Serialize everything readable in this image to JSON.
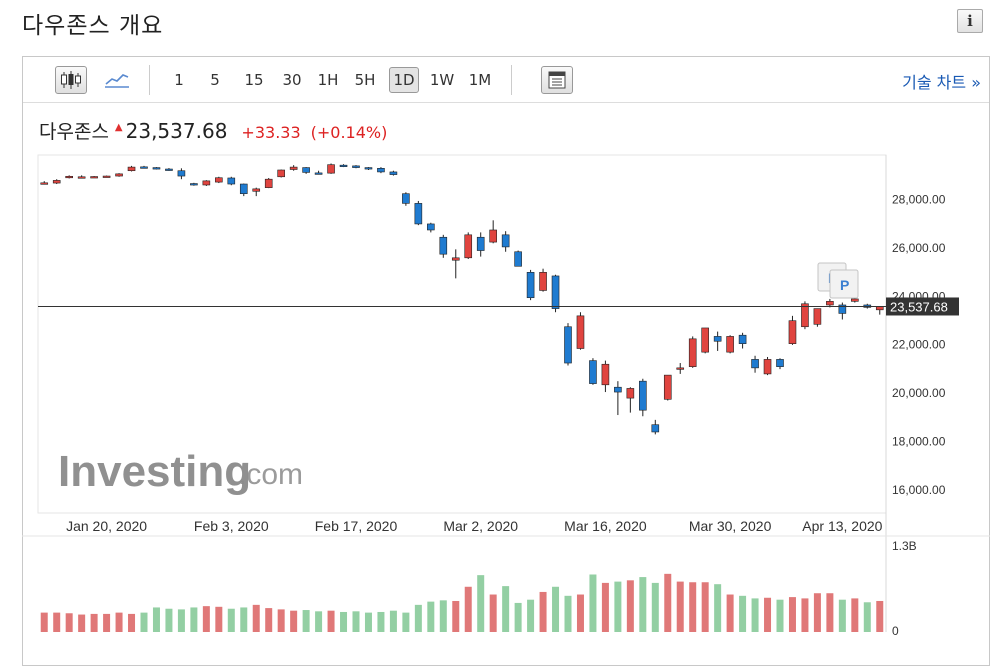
{
  "page_title": "다우존스 개요",
  "info_icon": "i",
  "toolbar": {
    "intervals": [
      "1",
      "5",
      "15",
      "30",
      "1H",
      "5H",
      "1D",
      "1W",
      "1M"
    ],
    "active_interval": "1D",
    "icons": [
      "candlestick-chart-icon",
      "line-chart-icon",
      "panel-icon"
    ],
    "tech_link": "기술 차트 »"
  },
  "quote": {
    "name": "다우존스",
    "price": "23,537.68",
    "change": "+33.33",
    "change_pct": "(+0.14%)"
  },
  "colors": {
    "up": "#e0443f",
    "down": "#1f7bd0",
    "vol_up": "#e07878",
    "vol_down": "#93cfa3"
  },
  "watermark": {
    "brand": "Investing",
    "suffix": ".com"
  },
  "markers": [
    "P",
    "P"
  ],
  "chart_data": {
    "type": "candlestick",
    "title": "",
    "y_ticks": [
      "28,000.00",
      "26,000.00",
      "24,000.00",
      "22,000.00",
      "20,000.00",
      "18,000.00",
      "16,000.00"
    ],
    "y_tick_values": [
      28000,
      26000,
      24000,
      22000,
      20000,
      18000,
      16000
    ],
    "ylim": [
      15000,
      29800
    ],
    "x_ticks": [
      "Jan 20, 2020",
      "Feb 3, 2020",
      "Feb 17, 2020",
      "Mar 2, 2020",
      "Mar 16, 2020",
      "Mar 30, 2020",
      "Apr 13, 2020"
    ],
    "x_tick_index": [
      5,
      15,
      25,
      35,
      45,
      55,
      64
    ],
    "last_price": 23537.68,
    "last_price_label": "23,537.68",
    "volume_ticks": [
      "1.3B",
      "0"
    ],
    "volume_max": 1300,
    "ohlc": [
      [
        28620,
        28720,
        28580,
        28650
      ],
      [
        28640,
        28800,
        28600,
        28750
      ],
      [
        28860,
        28960,
        28830,
        28920
      ],
      [
        28900,
        28960,
        28860,
        28900
      ],
      [
        28900,
        28930,
        28880,
        28910
      ],
      [
        28920,
        28950,
        28880,
        28930
      ],
      [
        28930,
        29050,
        28900,
        29020
      ],
      [
        29150,
        29350,
        29120,
        29300
      ],
      [
        29310,
        29350,
        29250,
        29290
      ],
      [
        29280,
        29300,
        29200,
        29220
      ],
      [
        29220,
        29260,
        29150,
        29200
      ],
      [
        29150,
        29250,
        28800,
        28930
      ],
      [
        28620,
        28650,
        28530,
        28580
      ],
      [
        28560,
        28760,
        28520,
        28730
      ],
      [
        28680,
        28900,
        28640,
        28860
      ],
      [
        28850,
        28900,
        28550,
        28600
      ],
      [
        28600,
        28620,
        28100,
        28200
      ],
      [
        28300,
        28450,
        28100,
        28400
      ],
      [
        28450,
        28850,
        28430,
        28800
      ],
      [
        28900,
        29200,
        28870,
        29180
      ],
      [
        29200,
        29380,
        29150,
        29300
      ],
      [
        29280,
        29300,
        29020,
        29080
      ],
      [
        29060,
        29150,
        29000,
        29050
      ],
      [
        29050,
        29450,
        29020,
        29400
      ],
      [
        29380,
        29420,
        29300,
        29350
      ],
      [
        29350,
        29380,
        29250,
        29280
      ],
      [
        29280,
        29300,
        29180,
        29250
      ],
      [
        29250,
        29300,
        29050,
        29100
      ],
      [
        29100,
        29150,
        28950,
        28990
      ],
      [
        28200,
        28260,
        27700,
        27800
      ],
      [
        27800,
        27900,
        26900,
        26950
      ],
      [
        26950,
        27000,
        26600,
        26700
      ],
      [
        26400,
        26500,
        25550,
        25700
      ],
      [
        25450,
        25900,
        24700,
        25550
      ],
      [
        25550,
        26600,
        25500,
        26500
      ],
      [
        26400,
        26600,
        25600,
        25850
      ],
      [
        26200,
        27100,
        26150,
        26700
      ],
      [
        26500,
        26650,
        25800,
        26000
      ],
      [
        25800,
        25850,
        25250,
        25200
      ],
      [
        24950,
        25050,
        23800,
        23900
      ],
      [
        24200,
        25100,
        24150,
        24950
      ],
      [
        24800,
        24850,
        23300,
        23450
      ],
      [
        22700,
        22850,
        21100,
        21200
      ],
      [
        21800,
        23300,
        21750,
        23150
      ],
      [
        21300,
        21400,
        20300,
        20350
      ],
      [
        20300,
        21300,
        20000,
        21150
      ],
      [
        20200,
        20450,
        19050,
        20000
      ],
      [
        19750,
        20200,
        19150,
        20150
      ],
      [
        20450,
        20550,
        19000,
        19250
      ],
      [
        18650,
        18850,
        18250,
        18350
      ],
      [
        19700,
        20700,
        19650,
        20700
      ],
      [
        20950,
        21200,
        20750,
        21000
      ],
      [
        21050,
        22300,
        21000,
        22200
      ],
      [
        21650,
        22650,
        21600,
        22650
      ],
      [
        22300,
        22500,
        21700,
        22100
      ],
      [
        21650,
        22350,
        21600,
        22300
      ],
      [
        22350,
        22450,
        21800,
        22000
      ],
      [
        21350,
        21500,
        20800,
        21000
      ],
      [
        20750,
        21450,
        20700,
        21350
      ],
      [
        21350,
        21400,
        20950,
        21050
      ],
      [
        22000,
        23150,
        21950,
        22950
      ],
      [
        22700,
        23750,
        22600,
        23650
      ],
      [
        22800,
        23450,
        22700,
        23450
      ],
      [
        23600,
        23850,
        23500,
        23750
      ],
      [
        23600,
        23700,
        23000,
        23250
      ],
      [
        23750,
        23900,
        23700,
        23850
      ],
      [
        23600,
        23650,
        23450,
        23500
      ],
      [
        23400,
        23550,
        23200,
        23537.68
      ]
    ],
    "volume": [
      300,
      300,
      290,
      270,
      280,
      280,
      300,
      280,
      300,
      380,
      360,
      350,
      380,
      400,
      390,
      360,
      380,
      420,
      370,
      350,
      330,
      340,
      320,
      330,
      310,
      320,
      300,
      310,
      330,
      300,
      420,
      470,
      490,
      480,
      700,
      880,
      580,
      710,
      450,
      500,
      620,
      700,
      560,
      580,
      890,
      760,
      780,
      800,
      850,
      760,
      900,
      780,
      770,
      770,
      740,
      580,
      560,
      520,
      530,
      500,
      540,
      520,
      600,
      600,
      500,
      520,
      460,
      480
    ]
  }
}
